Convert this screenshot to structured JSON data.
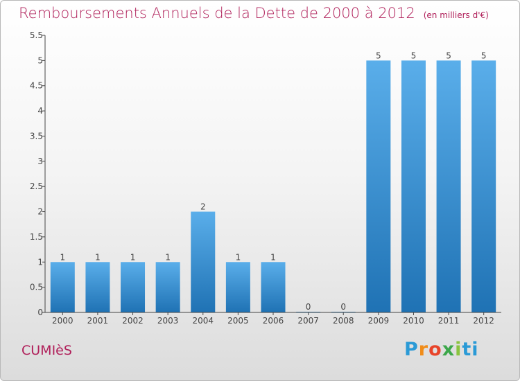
{
  "header": {
    "title": "Remboursements Annuels de la Dette de 2000 à 2012",
    "unit": "(en milliers d'€)"
  },
  "footer": {
    "commune": "CUMIèS",
    "logo": "Proxiti",
    "logo_colors": [
      "#2a9ad6",
      "#f08c1a",
      "#e8442a",
      "#3ca74a",
      "#8ac43f",
      "#2a9ad6"
    ]
  },
  "chart_data": {
    "type": "bar",
    "categories": [
      "2000",
      "2001",
      "2002",
      "2003",
      "2004",
      "2005",
      "2006",
      "2007",
      "2008",
      "2009",
      "2010",
      "2011",
      "2012"
    ],
    "values": [
      1,
      1,
      1,
      1,
      2,
      1,
      1,
      0,
      0,
      5,
      5,
      5,
      5
    ],
    "data_labels": [
      "1",
      "1",
      "1",
      "1",
      "2",
      "1",
      "1",
      "0",
      "0",
      "5",
      "5",
      "5",
      "5"
    ],
    "ylim": [
      0,
      5.5
    ],
    "yticks": [
      0,
      0.5,
      1,
      1.5,
      2,
      2.5,
      3,
      3.5,
      4,
      4.5,
      5,
      5.5
    ],
    "ytick_labels": [
      "0",
      "0.5",
      "1",
      "1.5",
      "2",
      "2.5",
      "3",
      "3.5",
      "4",
      "4.5",
      "5",
      "5.5"
    ],
    "grid": false,
    "bar_color_top": "#5aaeea",
    "bar_color_bottom": "#1f72b4",
    "axis_color": "#444444"
  }
}
